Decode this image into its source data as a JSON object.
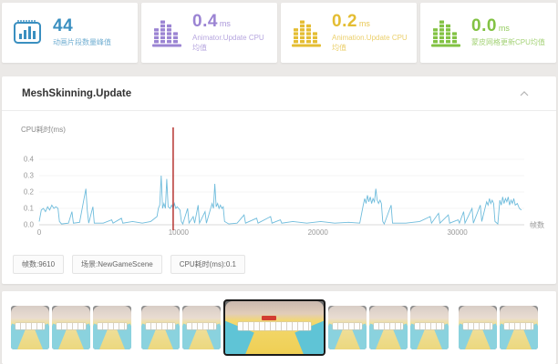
{
  "stats": [
    {
      "value": "44",
      "unit": "",
      "label": "动画片段数量峰值",
      "color": "#3a8fc0",
      "icon": "chip-bar-chart-icon"
    },
    {
      "value": "0.4",
      "unit": "ms",
      "label": "Animator.Update CPU均值",
      "color": "#9b84d3",
      "icon": "building-bars-icon"
    },
    {
      "value": "0.2",
      "unit": "ms",
      "label": "Animation.Update CPU均值",
      "color": "#e4bd33",
      "icon": "building-bars-icon"
    },
    {
      "value": "0.0",
      "unit": "ms",
      "label": "蒙皮网格更新CPU均值",
      "color": "#82c243",
      "icon": "building-bars-icon"
    }
  ],
  "panel": {
    "title": "MeshSkinning.Update"
  },
  "chart_data": {
    "type": "line",
    "title": "MeshSkinning.Update",
    "ylabel": "CPU耗时(ms)",
    "xlabel": "帧数",
    "ylim": [
      0,
      0.45
    ],
    "xlim": [
      0,
      34800
    ],
    "yticks": [
      0.0,
      0.1,
      0.2,
      0.3,
      0.4
    ],
    "xticks": [
      0,
      10000,
      20000,
      30000
    ],
    "grid": true,
    "line_color": "#6fbcdc",
    "axis_color": "#d9d9d9",
    "text_color": "#999999",
    "marker": {
      "frame": 9610,
      "color": "#b63430",
      "label": "selected-frame-marker"
    },
    "points": [
      [
        0,
        0.02
      ],
      [
        150,
        0.09
      ],
      [
        300,
        0.1
      ],
      [
        450,
        0.08
      ],
      [
        600,
        0.11
      ],
      [
        750,
        0.09
      ],
      [
        900,
        0.12
      ],
      [
        1050,
        0.1
      ],
      [
        1200,
        0.11
      ],
      [
        1350,
        0.1
      ],
      [
        1450,
        0.02
      ],
      [
        1600,
        0.005
      ],
      [
        2100,
        0.01
      ],
      [
        2350,
        0.08
      ],
      [
        2450,
        0.01
      ],
      [
        2900,
        0.015
      ],
      [
        3350,
        0.22
      ],
      [
        3450,
        0.09
      ],
      [
        3550,
        0.01
      ],
      [
        3850,
        0.11
      ],
      [
        3950,
        0.01
      ],
      [
        4600,
        0.01
      ],
      [
        5200,
        0.03
      ],
      [
        5300,
        0.01
      ],
      [
        5900,
        0.04
      ],
      [
        6000,
        0.01
      ],
      [
        6700,
        0.02
      ],
      [
        7400,
        0.01
      ],
      [
        8000,
        0.02
      ],
      [
        8450,
        0.05
      ],
      [
        8550,
        0.1
      ],
      [
        8650,
        0.12
      ],
      [
        8750,
        0.3
      ],
      [
        8850,
        0.1
      ],
      [
        8950,
        0.13
      ],
      [
        9050,
        0.1
      ],
      [
        9150,
        0.28
      ],
      [
        9250,
        0.11
      ],
      [
        9400,
        0.1
      ],
      [
        9500,
        0.12
      ],
      [
        9610,
        0.1
      ],
      [
        9700,
        0.13
      ],
      [
        9800,
        0.1
      ],
      [
        9900,
        0.11
      ],
      [
        10000,
        0.1
      ],
      [
        10100,
        0.09
      ],
      [
        10200,
        0.02
      ],
      [
        10300,
        0.005
      ],
      [
        10650,
        0.1
      ],
      [
        10750,
        0.01
      ],
      [
        11050,
        0.05
      ],
      [
        11150,
        0.01
      ],
      [
        11400,
        0.12
      ],
      [
        11500,
        0.01
      ],
      [
        11900,
        0.08
      ],
      [
        12000,
        0.01
      ],
      [
        12400,
        0.13
      ],
      [
        12500,
        0.1
      ],
      [
        12600,
        0.25
      ],
      [
        12700,
        0.11
      ],
      [
        12800,
        0.13
      ],
      [
        12900,
        0.1
      ],
      [
        13000,
        0.12
      ],
      [
        13100,
        0.1
      ],
      [
        13200,
        0.11
      ],
      [
        13300,
        0.02
      ],
      [
        13600,
        0.005
      ],
      [
        14200,
        0.01
      ],
      [
        14700,
        0.06
      ],
      [
        14800,
        0.01
      ],
      [
        15600,
        0.04
      ],
      [
        15700,
        0.01
      ],
      [
        16600,
        0.05
      ],
      [
        16700,
        0.01
      ],
      [
        17300,
        0.03
      ],
      [
        17400,
        0.01
      ],
      [
        18200,
        0.02
      ],
      [
        19200,
        0.01
      ],
      [
        20200,
        0.02
      ],
      [
        21200,
        0.01
      ],
      [
        22200,
        0.015
      ],
      [
        23000,
        0.01
      ],
      [
        23250,
        0.12
      ],
      [
        23350,
        0.16
      ],
      [
        23450,
        0.13
      ],
      [
        23550,
        0.18
      ],
      [
        23650,
        0.14
      ],
      [
        23750,
        0.17
      ],
      [
        23850,
        0.13
      ],
      [
        23950,
        0.16
      ],
      [
        24050,
        0.14
      ],
      [
        24150,
        0.22
      ],
      [
        24250,
        0.15
      ],
      [
        24350,
        0.13
      ],
      [
        24450,
        0.15
      ],
      [
        24550,
        0.13
      ],
      [
        24650,
        0.02
      ],
      [
        24750,
        0.005
      ],
      [
        25250,
        0.12
      ],
      [
        25350,
        0.01
      ],
      [
        26300,
        0.01
      ],
      [
        27300,
        0.02
      ],
      [
        28050,
        0.05
      ],
      [
        28150,
        0.01
      ],
      [
        28650,
        0.07
      ],
      [
        28750,
        0.01
      ],
      [
        29350,
        0.06
      ],
      [
        29450,
        0.01
      ],
      [
        30050,
        0.03
      ],
      [
        30150,
        0.01
      ],
      [
        30450,
        0.08
      ],
      [
        30550,
        0.01
      ],
      [
        31050,
        0.1
      ],
      [
        31150,
        0.01
      ],
      [
        31650,
        0.12
      ],
      [
        31750,
        0.02
      ],
      [
        32100,
        0.14
      ],
      [
        32200,
        0.12
      ],
      [
        32300,
        0.16
      ],
      [
        32400,
        0.13
      ],
      [
        32500,
        0.15
      ],
      [
        32600,
        0.13
      ],
      [
        32700,
        0.02
      ],
      [
        32900,
        0.005
      ],
      [
        33050,
        0.15
      ],
      [
        33150,
        0.12
      ],
      [
        33250,
        0.17
      ],
      [
        33350,
        0.13
      ],
      [
        33450,
        0.16
      ],
      [
        33550,
        0.14
      ],
      [
        33650,
        0.17
      ],
      [
        33750,
        0.12
      ],
      [
        33850,
        0.15
      ],
      [
        33950,
        0.13
      ],
      [
        34050,
        0.16
      ],
      [
        34150,
        0.12
      ],
      [
        34300,
        0.13
      ],
      [
        34450,
        0.1
      ],
      [
        34600,
        0.09
      ]
    ]
  },
  "tags": [
    {
      "label": "帧数:9610"
    },
    {
      "label": "场景:NewGameScene"
    },
    {
      "label": "CPU耗时(ms):0.1"
    }
  ],
  "filmstrip": {
    "selected_index": 5,
    "thumbs": [
      {
        "selected": false
      },
      {
        "selected": false
      },
      {
        "selected": false
      },
      {
        "selected": false
      },
      {
        "selected": false
      },
      {
        "selected": true
      },
      {
        "selected": false
      },
      {
        "selected": false
      },
      {
        "selected": false
      },
      {
        "selected": false
      },
      {
        "selected": false
      }
    ]
  }
}
